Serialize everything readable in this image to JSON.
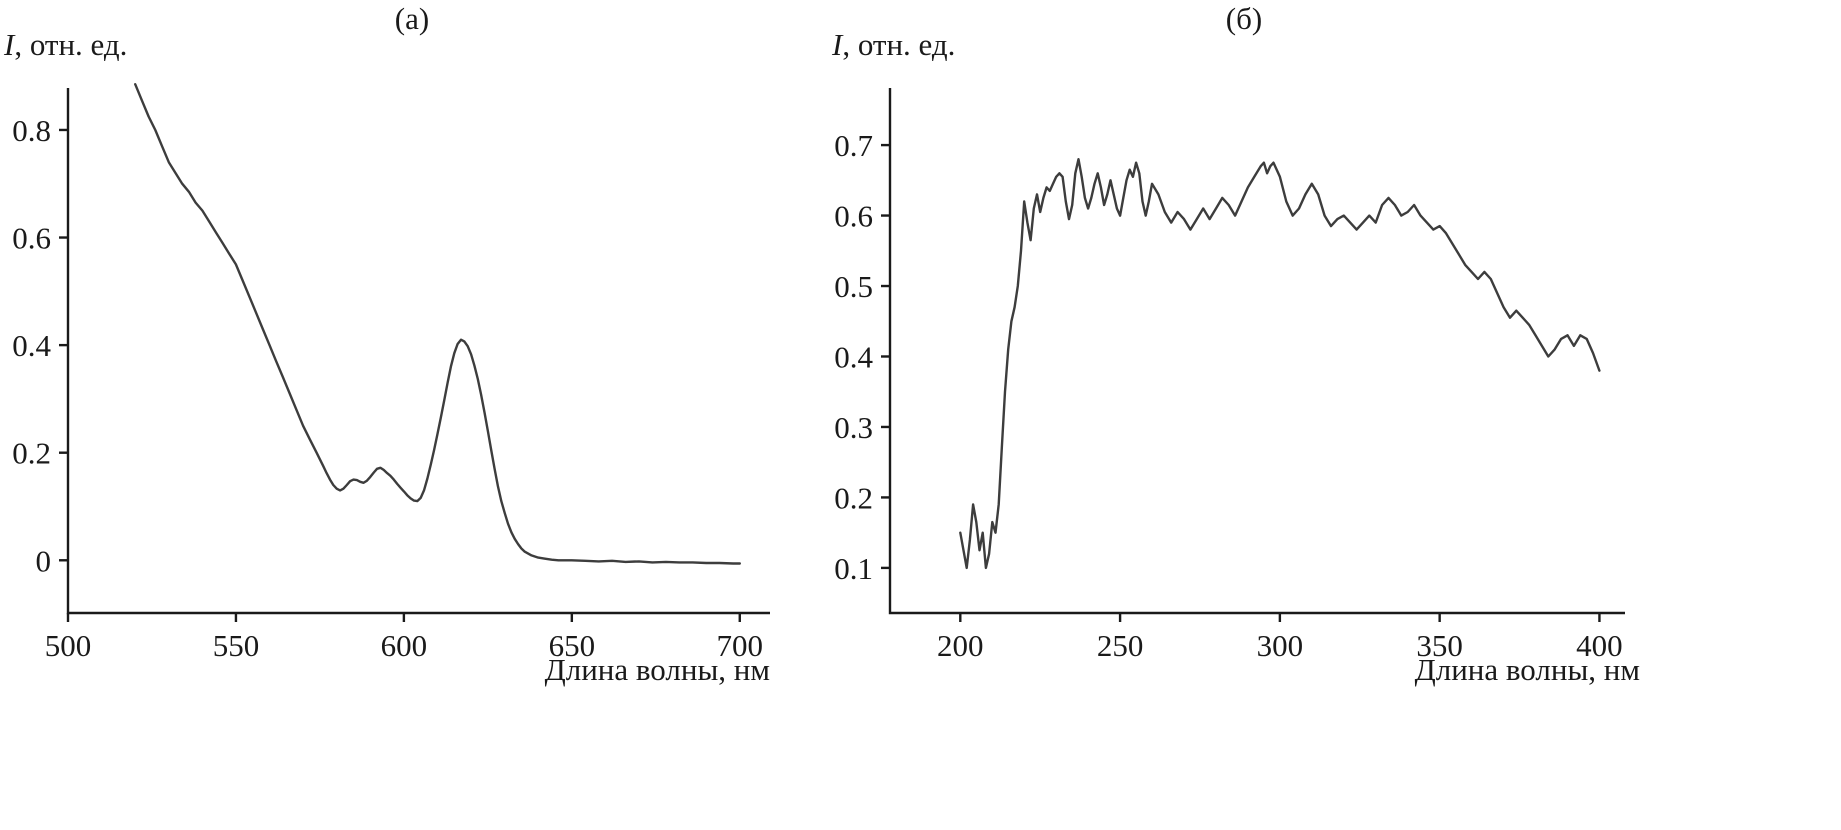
{
  "figure": {
    "background": "#ffffff",
    "text_color": "#1a1a1a",
    "axis_color": "#1a1a1a",
    "curve_color": "#3d3d3d"
  },
  "chart_data": [
    {
      "type": "line",
      "title": "(а)",
      "ylabel_italic": "I",
      "ylabel_rest": ", отн. ед.",
      "xlabel": "Длина волны, нм",
      "legend": "none",
      "grid": false,
      "xlim": [
        500,
        709
      ],
      "ylim": [
        -0.098,
        0.878
      ],
      "xticks": [
        500,
        550,
        600,
        650,
        700
      ],
      "xtick_labels": [
        "500",
        "550",
        "600",
        "650",
        "700"
      ],
      "yticks": [
        0,
        0.2,
        0.4,
        0.6,
        0.8
      ],
      "ytick_labels": [
        "0",
        "0.2",
        "0.4",
        "0.6",
        "0.8"
      ],
      "points": [
        [
          520,
          0.885
        ],
        [
          522,
          0.855
        ],
        [
          524,
          0.825
        ],
        [
          526,
          0.8
        ],
        [
          528,
          0.77
        ],
        [
          530,
          0.74
        ],
        [
          532,
          0.72
        ],
        [
          534,
          0.7
        ],
        [
          536,
          0.685
        ],
        [
          538,
          0.665
        ],
        [
          540,
          0.65
        ],
        [
          542,
          0.63
        ],
        [
          544,
          0.61
        ],
        [
          546,
          0.59
        ],
        [
          548,
          0.57
        ],
        [
          550,
          0.55
        ],
        [
          552,
          0.52
        ],
        [
          554,
          0.49
        ],
        [
          556,
          0.46
        ],
        [
          558,
          0.43
        ],
        [
          560,
          0.4
        ],
        [
          562,
          0.37
        ],
        [
          564,
          0.34
        ],
        [
          566,
          0.31
        ],
        [
          568,
          0.28
        ],
        [
          570,
          0.25
        ],
        [
          572,
          0.225
        ],
        [
          574,
          0.2
        ],
        [
          576,
          0.175
        ],
        [
          577,
          0.162
        ],
        [
          578,
          0.15
        ],
        [
          579,
          0.14
        ],
        [
          580,
          0.133
        ],
        [
          581,
          0.13
        ],
        [
          582,
          0.133
        ],
        [
          583,
          0.14
        ],
        [
          584,
          0.147
        ],
        [
          585,
          0.15
        ],
        [
          586,
          0.149
        ],
        [
          587,
          0.146
        ],
        [
          588,
          0.144
        ],
        [
          589,
          0.148
        ],
        [
          590,
          0.155
        ],
        [
          591,
          0.163
        ],
        [
          592,
          0.17
        ],
        [
          593,
          0.172
        ],
        [
          594,
          0.168
        ],
        [
          595,
          0.162
        ],
        [
          596,
          0.157
        ],
        [
          597,
          0.15
        ],
        [
          598,
          0.142
        ],
        [
          599,
          0.135
        ],
        [
          600,
          0.128
        ],
        [
          601,
          0.121
        ],
        [
          602,
          0.115
        ],
        [
          603,
          0.111
        ],
        [
          604,
          0.11
        ],
        [
          605,
          0.116
        ],
        [
          606,
          0.13
        ],
        [
          607,
          0.152
        ],
        [
          608,
          0.178
        ],
        [
          609,
          0.205
        ],
        [
          610,
          0.235
        ],
        [
          611,
          0.265
        ],
        [
          612,
          0.297
        ],
        [
          613,
          0.33
        ],
        [
          614,
          0.36
        ],
        [
          615,
          0.385
        ],
        [
          616,
          0.402
        ],
        [
          617,
          0.41
        ],
        [
          618,
          0.407
        ],
        [
          619,
          0.398
        ],
        [
          620,
          0.383
        ],
        [
          621,
          0.362
        ],
        [
          622,
          0.337
        ],
        [
          623,
          0.308
        ],
        [
          624,
          0.275
        ],
        [
          625,
          0.24
        ],
        [
          626,
          0.205
        ],
        [
          627,
          0.17
        ],
        [
          628,
          0.138
        ],
        [
          629,
          0.11
        ],
        [
          630,
          0.088
        ],
        [
          631,
          0.068
        ],
        [
          632,
          0.052
        ],
        [
          633,
          0.04
        ],
        [
          634,
          0.03
        ],
        [
          635,
          0.022
        ],
        [
          636,
          0.016
        ],
        [
          638,
          0.009
        ],
        [
          640,
          0.005
        ],
        [
          642,
          0.003
        ],
        [
          644,
          0.001
        ],
        [
          646,
          0
        ],
        [
          650,
          0
        ],
        [
          654,
          -0.001
        ],
        [
          658,
          -0.002
        ],
        [
          662,
          -0.001
        ],
        [
          666,
          -0.003
        ],
        [
          670,
          -0.002
        ],
        [
          674,
          -0.004
        ],
        [
          678,
          -0.003
        ],
        [
          682,
          -0.004
        ],
        [
          686,
          -0.004
        ],
        [
          690,
          -0.005
        ],
        [
          694,
          -0.005
        ],
        [
          698,
          -0.006
        ],
        [
          700,
          -0.006
        ]
      ]
    },
    {
      "type": "line",
      "title": "(б)",
      "ylabel_italic": "I",
      "ylabel_rest": ", отн. ед.",
      "xlabel": "Длина волны, нм",
      "legend": "none",
      "grid": false,
      "xlim": [
        178,
        408
      ],
      "ylim": [
        0.036,
        0.781
      ],
      "xticks": [
        200,
        250,
        300,
        350,
        400
      ],
      "xtick_labels": [
        "200",
        "250",
        "300",
        "350",
        "400"
      ],
      "yticks": [
        0.1,
        0.2,
        0.3,
        0.4,
        0.5,
        0.6,
        0.7
      ],
      "ytick_labels": [
        "0.1",
        "0.2",
        "0.3",
        "0.4",
        "0.5",
        "0.6",
        "0.7"
      ],
      "points": [
        [
          200,
          0.15
        ],
        [
          201,
          0.125
        ],
        [
          202,
          0.1
        ],
        [
          203,
          0.14
        ],
        [
          204,
          0.19
        ],
        [
          205,
          0.165
        ],
        [
          206,
          0.125
        ],
        [
          207,
          0.15
        ],
        [
          208,
          0.1
        ],
        [
          209,
          0.12
        ],
        [
          210,
          0.165
        ],
        [
          211,
          0.15
        ],
        [
          212,
          0.19
        ],
        [
          213,
          0.27
        ],
        [
          214,
          0.35
        ],
        [
          215,
          0.41
        ],
        [
          216,
          0.45
        ],
        [
          217,
          0.47
        ],
        [
          218,
          0.5
        ],
        [
          219,
          0.55
        ],
        [
          220,
          0.62
        ],
        [
          221,
          0.59
        ],
        [
          222,
          0.565
        ],
        [
          223,
          0.61
        ],
        [
          224,
          0.63
        ],
        [
          225,
          0.605
        ],
        [
          226,
          0.625
        ],
        [
          227,
          0.64
        ],
        [
          228,
          0.635
        ],
        [
          229,
          0.645
        ],
        [
          230,
          0.655
        ],
        [
          231,
          0.66
        ],
        [
          232,
          0.655
        ],
        [
          233,
          0.62
        ],
        [
          234,
          0.595
        ],
        [
          235,
          0.615
        ],
        [
          236,
          0.66
        ],
        [
          237,
          0.68
        ],
        [
          238,
          0.655
        ],
        [
          239,
          0.625
        ],
        [
          240,
          0.61
        ],
        [
          241,
          0.625
        ],
        [
          242,
          0.645
        ],
        [
          243,
          0.66
        ],
        [
          244,
          0.64
        ],
        [
          245,
          0.615
        ],
        [
          246,
          0.63
        ],
        [
          247,
          0.65
        ],
        [
          248,
          0.63
        ],
        [
          249,
          0.61
        ],
        [
          250,
          0.6
        ],
        [
          251,
          0.625
        ],
        [
          252,
          0.65
        ],
        [
          253,
          0.665
        ],
        [
          254,
          0.655
        ],
        [
          255,
          0.675
        ],
        [
          256,
          0.66
        ],
        [
          257,
          0.62
        ],
        [
          258,
          0.6
        ],
        [
          259,
          0.62
        ],
        [
          260,
          0.645
        ],
        [
          262,
          0.63
        ],
        [
          264,
          0.605
        ],
        [
          266,
          0.59
        ],
        [
          268,
          0.605
        ],
        [
          270,
          0.595
        ],
        [
          272,
          0.58
        ],
        [
          274,
          0.595
        ],
        [
          276,
          0.61
        ],
        [
          278,
          0.595
        ],
        [
          280,
          0.61
        ],
        [
          282,
          0.625
        ],
        [
          284,
          0.615
        ],
        [
          286,
          0.6
        ],
        [
          288,
          0.62
        ],
        [
          290,
          0.64
        ],
        [
          292,
          0.655
        ],
        [
          294,
          0.67
        ],
        [
          295,
          0.675
        ],
        [
          296,
          0.66
        ],
        [
          297,
          0.67
        ],
        [
          298,
          0.675
        ],
        [
          300,
          0.655
        ],
        [
          302,
          0.62
        ],
        [
          304,
          0.6
        ],
        [
          306,
          0.61
        ],
        [
          308,
          0.63
        ],
        [
          310,
          0.645
        ],
        [
          312,
          0.63
        ],
        [
          314,
          0.6
        ],
        [
          316,
          0.585
        ],
        [
          318,
          0.595
        ],
        [
          320,
          0.6
        ],
        [
          322,
          0.59
        ],
        [
          324,
          0.58
        ],
        [
          326,
          0.59
        ],
        [
          328,
          0.6
        ],
        [
          330,
          0.59
        ],
        [
          332,
          0.615
        ],
        [
          334,
          0.625
        ],
        [
          336,
          0.615
        ],
        [
          338,
          0.6
        ],
        [
          340,
          0.605
        ],
        [
          342,
          0.615
        ],
        [
          344,
          0.6
        ],
        [
          346,
          0.59
        ],
        [
          348,
          0.58
        ],
        [
          350,
          0.585
        ],
        [
          352,
          0.575
        ],
        [
          354,
          0.56
        ],
        [
          356,
          0.545
        ],
        [
          358,
          0.53
        ],
        [
          360,
          0.52
        ],
        [
          362,
          0.51
        ],
        [
          364,
          0.52
        ],
        [
          366,
          0.51
        ],
        [
          368,
          0.49
        ],
        [
          370,
          0.47
        ],
        [
          372,
          0.455
        ],
        [
          374,
          0.465
        ],
        [
          376,
          0.455
        ],
        [
          378,
          0.445
        ],
        [
          380,
          0.43
        ],
        [
          382,
          0.415
        ],
        [
          384,
          0.4
        ],
        [
          386,
          0.41
        ],
        [
          388,
          0.425
        ],
        [
          390,
          0.43
        ],
        [
          392,
          0.415
        ],
        [
          394,
          0.43
        ],
        [
          396,
          0.425
        ],
        [
          398,
          0.405
        ],
        [
          400,
          0.38
        ]
      ]
    }
  ]
}
